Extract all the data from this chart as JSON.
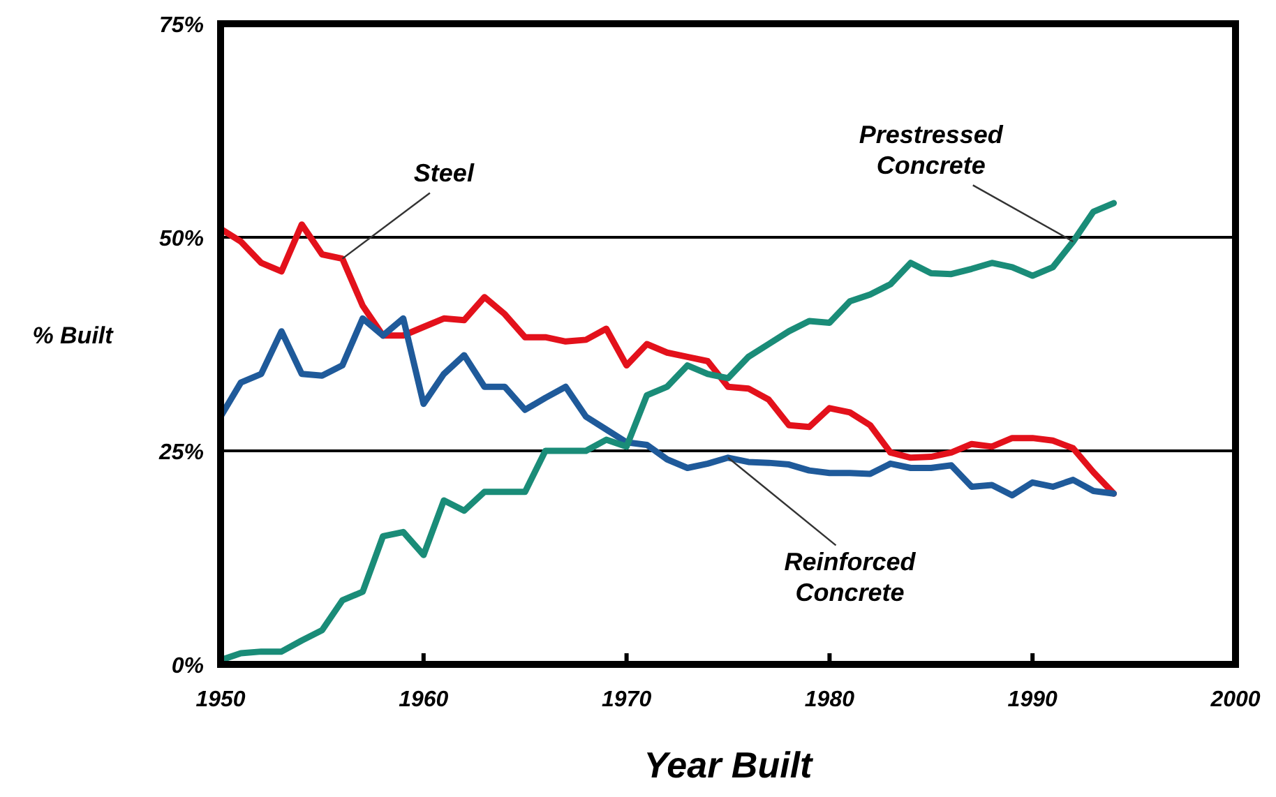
{
  "chart_data": {
    "type": "line",
    "xlabel": "Year Built",
    "ylabel": "% Built",
    "x": [
      1950,
      1951,
      1952,
      1953,
      1954,
      1955,
      1956,
      1957,
      1958,
      1959,
      1960,
      1961,
      1962,
      1963,
      1964,
      1965,
      1966,
      1967,
      1968,
      1969,
      1970,
      1971,
      1972,
      1973,
      1974,
      1975,
      1976,
      1977,
      1978,
      1979,
      1980,
      1981,
      1982,
      1983,
      1984,
      1985,
      1986,
      1987,
      1988,
      1989,
      1990,
      1991,
      1992,
      1993,
      1994
    ],
    "series": [
      {
        "name": "Steel",
        "color": "#e3111b",
        "values": [
          51,
          49.5,
          47,
          46,
          51.5,
          48,
          47.5,
          42,
          38.5,
          38.5,
          39.5,
          40.5,
          40.3,
          43,
          41,
          38.3,
          38.3,
          37.8,
          38,
          39.3,
          35,
          37.5,
          36.5,
          36,
          35.5,
          32.5,
          32.3,
          31,
          28,
          27.8,
          30,
          29.5,
          28,
          24.8,
          24.2,
          24.3,
          24.8,
          25.8,
          25.5,
          26.5,
          26.5,
          26.2,
          25.3,
          22.5,
          20
        ]
      },
      {
        "name": "Reinforced Concrete",
        "color": "#1f5a9a",
        "values": [
          29,
          33,
          34,
          39,
          34,
          33.8,
          35,
          40.5,
          38.5,
          40.5,
          30.5,
          34,
          36.2,
          32.5,
          32.5,
          29.8,
          31.2,
          32.5,
          29,
          27.5,
          26,
          25.7,
          24,
          23,
          23.5,
          24.2,
          23.7,
          23.6,
          23.4,
          22.7,
          22.4,
          22.4,
          22.3,
          23.5,
          23,
          23,
          23.3,
          20.8,
          21,
          19.8,
          21.3,
          20.8,
          21.6,
          20.3,
          20
        ]
      },
      {
        "name": "Prestressed Concrete",
        "color": "#1a8c78",
        "values": [
          0.5,
          1.3,
          1.5,
          1.5,
          2.8,
          4,
          7.5,
          8.5,
          15,
          15.5,
          12.8,
          19.2,
          18,
          20.2,
          20.2,
          20.2,
          25,
          25,
          25,
          26.3,
          25.5,
          31.5,
          32.5,
          35,
          34,
          33.5,
          36,
          37.5,
          39,
          40.2,
          40,
          42.5,
          43.3,
          44.5,
          47,
          45.8,
          45.7,
          46.3,
          47,
          46.5,
          45.5,
          46.5,
          49.5,
          53,
          54
        ]
      }
    ],
    "xlim": [
      1950,
      2000
    ],
    "xticks": [
      1950,
      1960,
      1970,
      1980,
      1990,
      2000
    ],
    "ylim": [
      0,
      75
    ],
    "yticks": [
      {
        "value": 0,
        "label": "0%"
      },
      {
        "value": 25,
        "label": "25%"
      },
      {
        "value": 50,
        "label": "50%"
      },
      {
        "value": 75,
        "label": "75%"
      }
    ],
    "grid": "y",
    "marker": "none",
    "line_style": "solid"
  }
}
